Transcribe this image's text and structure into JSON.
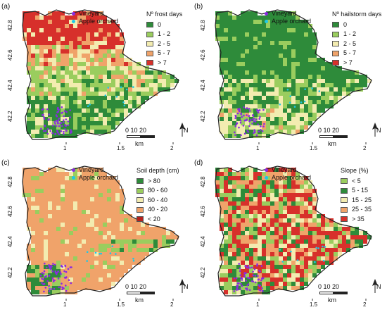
{
  "panels": [
    {
      "label": "(a)",
      "legend_title": "Nº frost days",
      "classes": [
        {
          "label": "0",
          "color": "#2e8b3a"
        },
        {
          "label": "1 - 2",
          "color": "#9acd5e"
        },
        {
          "label": "2 - 5",
          "color": "#f3ecb0"
        },
        {
          "label": "5 - 7",
          "color": "#f0a36a"
        },
        {
          "label": "> 7",
          "color": "#d7302b"
        }
      ]
    },
    {
      "label": "(b)",
      "legend_title": "Nº hailstorm days",
      "classes": [
        {
          "label": "0",
          "color": "#2e8b3a"
        },
        {
          "label": "1 - 2",
          "color": "#9acd5e"
        },
        {
          "label": "2 - 5",
          "color": "#f3ecb0"
        },
        {
          "label": "5 - 7",
          "color": "#f0a36a"
        },
        {
          "label": "> 7",
          "color": "#d7302b"
        }
      ]
    },
    {
      "label": "(c)",
      "legend_title": "Soil depth (cm)",
      "classes": [
        {
          "label": "> 80",
          "color": "#2e8b3a"
        },
        {
          "label": "80 - 60",
          "color": "#9acd5e"
        },
        {
          "label": "60 - 40",
          "color": "#f3ecb0"
        },
        {
          "label": "40 - 20",
          "color": "#f0a36a"
        },
        {
          "label": "< 20",
          "color": "#b5221d"
        }
      ]
    },
    {
      "label": "(d)",
      "legend_title": "Slope (%)",
      "classes": [
        {
          "label": "< 5",
          "color": "#9acd5e"
        },
        {
          "label": "5 - 15",
          "color": "#2e8b3a"
        },
        {
          "label": "15 - 25",
          "color": "#f3ecb0"
        },
        {
          "label": "25 - 35",
          "color": "#f0a36a"
        },
        {
          "label": "> 35",
          "color": "#d7302b"
        }
      ]
    }
  ],
  "point_layers": [
    {
      "label": "Vineyard",
      "color": "#8a2be2"
    },
    {
      "label": "Apple orchard",
      "color": "#1ec8e6"
    }
  ],
  "axes": {
    "y_ticks": [
      "42.8",
      "42.6",
      "42.4",
      "42.2"
    ],
    "x_ticks": [
      "1",
      "1.5",
      "2"
    ]
  },
  "scale_bar": {
    "numbers": "0   10  20",
    "unit": "km"
  },
  "north_arrow": {
    "label": "N"
  }
}
